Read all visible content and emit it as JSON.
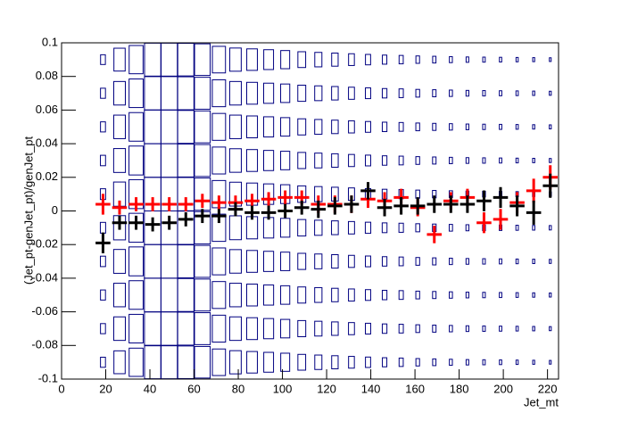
{
  "chart_data": {
    "type": "box2d",
    "x_label": "Jet_mt",
    "y_label": "(Jet_pt-genJet_pt)/genJet_pt",
    "xlim": [
      0,
      225
    ],
    "ylim": [
      -0.1,
      0.1
    ],
    "xticks": [
      0,
      20,
      40,
      60,
      80,
      100,
      120,
      140,
      160,
      180,
      200,
      220
    ],
    "yticks": [
      -0.1,
      -0.08,
      -0.06,
      -0.04,
      -0.02,
      0,
      0.02,
      0.04,
      0.06,
      0.08,
      0.1
    ],
    "xbins": [
      15,
      22.5,
      30,
      37.5,
      45,
      52.5,
      60,
      67.5,
      75,
      82.5,
      90,
      97.5,
      105,
      112.5,
      120,
      127.5,
      135,
      142.5,
      150,
      157.5,
      165,
      172.5,
      180,
      187.5,
      195,
      202.5,
      210,
      217.5,
      225
    ],
    "ybins": [
      -0.1,
      -0.08,
      -0.06,
      -0.04,
      -0.02,
      0,
      0.02,
      0.04,
      0.06,
      0.08,
      0.1
    ],
    "box_color": "#000080",
    "z": [
      [
        30,
        68,
        84,
        98,
        98,
        97,
        94,
        79,
        69,
        64,
        59,
        54,
        47,
        43,
        39,
        35,
        31,
        27,
        25,
        22,
        20,
        18,
        16,
        15,
        14,
        13,
        12,
        11
      ],
      [
        30,
        70,
        85,
        99,
        99,
        98,
        95,
        80,
        70,
        65,
        60,
        55,
        48,
        44,
        40,
        36,
        32,
        28,
        26,
        23,
        21,
        19,
        17,
        16,
        15,
        14,
        13,
        12
      ],
      [
        30,
        70,
        85,
        100,
        100,
        98,
        95,
        80,
        70,
        65,
        60,
        55,
        48,
        44,
        40,
        36,
        32,
        28,
        26,
        23,
        21,
        19,
        17,
        16,
        15,
        14,
        13,
        12
      ],
      [
        31,
        71,
        86,
        100,
        100,
        98,
        95,
        80,
        70,
        65,
        60,
        55,
        48,
        44,
        40,
        36,
        32,
        28,
        26,
        23,
        21,
        19,
        17,
        16,
        15,
        14,
        13,
        12
      ],
      [
        32,
        72,
        86,
        100,
        100,
        99,
        96,
        81,
        71,
        66,
        61,
        56,
        49,
        45,
        41,
        37,
        33,
        29,
        27,
        24,
        22,
        20,
        18,
        17,
        16,
        15,
        14,
        13
      ],
      [
        32,
        72,
        86,
        100,
        100,
        99,
        96,
        81,
        71,
        66,
        61,
        56,
        49,
        45,
        41,
        37,
        33,
        29,
        27,
        24,
        22,
        20,
        18,
        17,
        16,
        15,
        14,
        13
      ],
      [
        31,
        71,
        86,
        100,
        100,
        98,
        95,
        80,
        70,
        65,
        60,
        55,
        48,
        44,
        40,
        36,
        32,
        28,
        26,
        23,
        21,
        19,
        17,
        16,
        15,
        14,
        13,
        12
      ],
      [
        30,
        70,
        85,
        100,
        100,
        98,
        95,
        80,
        70,
        65,
        60,
        55,
        48,
        44,
        40,
        36,
        32,
        28,
        26,
        23,
        21,
        19,
        17,
        16,
        15,
        14,
        13,
        12
      ],
      [
        30,
        70,
        85,
        99,
        99,
        98,
        95,
        80,
        70,
        65,
        60,
        55,
        48,
        44,
        40,
        36,
        32,
        28,
        26,
        23,
        21,
        19,
        17,
        16,
        15,
        14,
        13,
        12
      ],
      [
        29,
        68,
        84,
        98,
        98,
        97,
        94,
        79,
        69,
        64,
        59,
        54,
        47,
        43,
        39,
        35,
        31,
        27,
        25,
        22,
        20,
        18,
        16,
        15,
        14,
        13,
        12,
        11
      ]
    ],
    "series": [
      {
        "color": "#ff0000",
        "values": [
          0.004,
          0.002,
          0.004,
          0.004,
          0.004,
          0.004,
          0.006,
          0.005,
          0.005,
          0.006,
          0.007,
          0.008,
          0.008,
          0.004,
          0.004,
          0.004,
          0.007,
          0.006,
          0.008,
          0.002,
          -0.014,
          0.006,
          0.008,
          -0.007,
          -0.005,
          0.005,
          0.012,
          0.02
        ],
        "errors": [
          0.003,
          0.001,
          0.001,
          0.001,
          0.001,
          0.001,
          0.001,
          0.001,
          0.001,
          0.001,
          0.001,
          0.001,
          0.001,
          0.002,
          0.002,
          0.002,
          0.002,
          0.002,
          0.002,
          0.002,
          0.002,
          0.002,
          0.002,
          0.003,
          0.003,
          0.003,
          0.004,
          0.004
        ]
      },
      {
        "color": "#000000",
        "values": [
          -0.019,
          -0.007,
          -0.007,
          -0.008,
          -0.007,
          -0.005,
          -0.003,
          -0.003,
          0.001,
          -0.001,
          -0.001,
          0,
          0.002,
          0.001,
          0.003,
          0.004,
          0.012,
          0.002,
          0.003,
          0.003,
          0.004,
          0.004,
          0.004,
          0.006,
          0.008,
          0.003,
          -0.001,
          0.015
        ],
        "errors": [
          0.003,
          0.001,
          0.001,
          0.001,
          0.001,
          0.001,
          0.001,
          0.001,
          0.001,
          0.001,
          0.001,
          0.001,
          0.001,
          0.002,
          0.002,
          0.002,
          0.002,
          0.002,
          0.002,
          0.002,
          0.002,
          0.002,
          0.002,
          0.003,
          0.003,
          0.003,
          0.004,
          0.004
        ]
      }
    ]
  }
}
